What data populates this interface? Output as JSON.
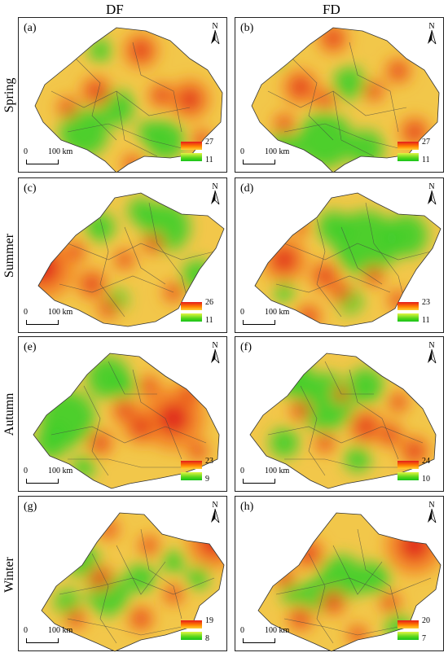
{
  "column_headers": [
    "DF",
    "FD"
  ],
  "row_headers": [
    "Spring",
    "Summer",
    "Autumn",
    "Winter"
  ],
  "scale_bar": {
    "zero": "0",
    "length": "100 km"
  },
  "north_arrow": {
    "label": "N"
  },
  "colors": {
    "high": "#e31a1c",
    "mid": "#ffd033",
    "low": "#17c41a",
    "boundary": "#444444"
  },
  "panels": [
    {
      "label": "(a)",
      "column": "DF",
      "season": "Spring",
      "legend_max": "27",
      "legend_min": "11"
    },
    {
      "label": "(b)",
      "column": "FD",
      "season": "Spring",
      "legend_max": "27",
      "legend_min": "11"
    },
    {
      "label": "(c)",
      "column": "DF",
      "season": "Summer",
      "legend_max": "26",
      "legend_min": "11"
    },
    {
      "label": "(d)",
      "column": "FD",
      "season": "Summer",
      "legend_max": "23",
      "legend_min": "11"
    },
    {
      "label": "(e)",
      "column": "DF",
      "season": "Autumn",
      "legend_max": "23",
      "legend_min": "9"
    },
    {
      "label": "(f)",
      "column": "FD",
      "season": "Autumn",
      "legend_max": "24",
      "legend_min": "10"
    },
    {
      "label": "(g)",
      "column": "DF",
      "season": "Winter",
      "legend_max": "19",
      "legend_min": "8"
    },
    {
      "label": "(h)",
      "column": "FD",
      "season": "Winter",
      "legend_max": "20",
      "legend_min": "7"
    }
  ]
}
